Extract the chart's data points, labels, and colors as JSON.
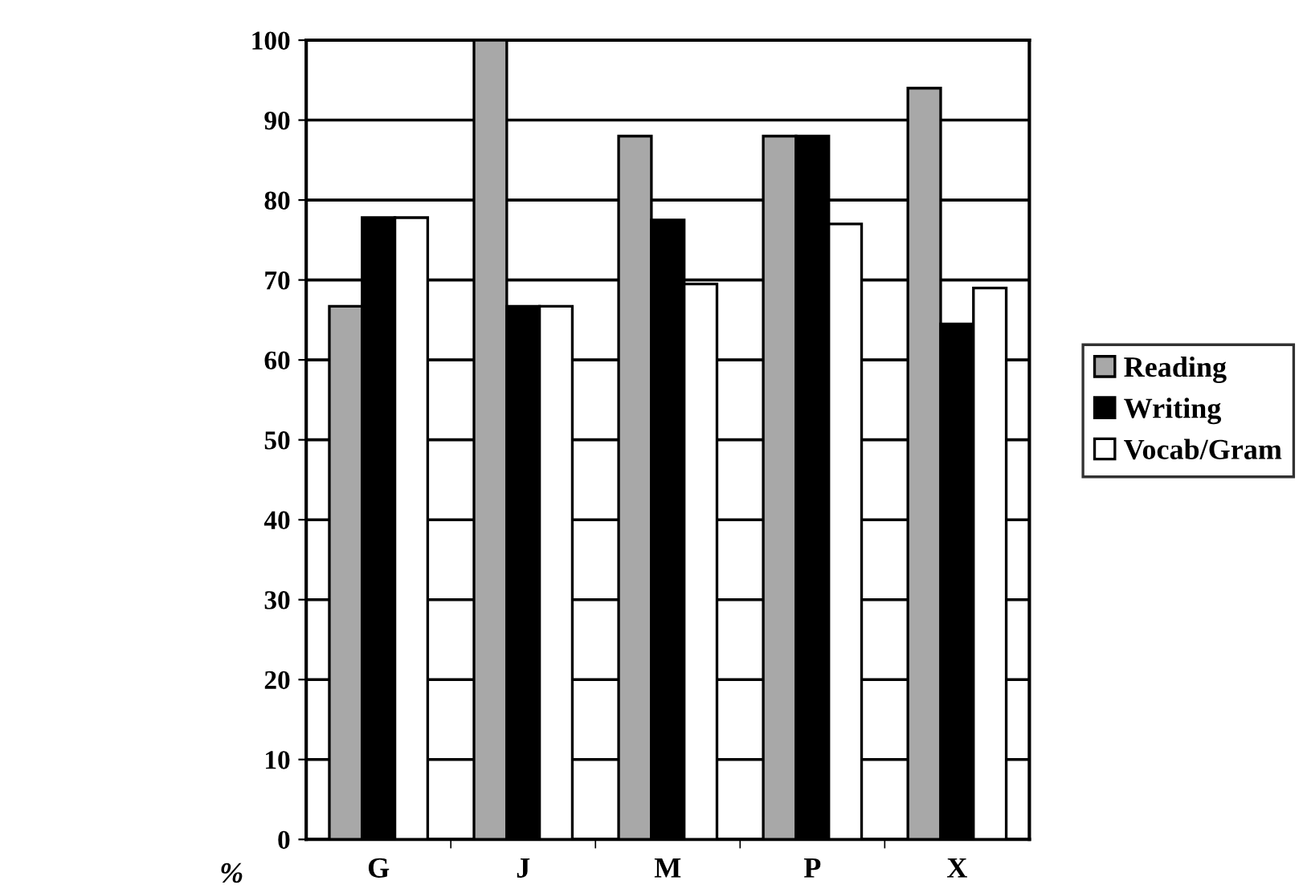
{
  "chart_data": {
    "type": "bar",
    "ylabel": "%",
    "categories": [
      "G",
      "J",
      "M",
      "P",
      "X"
    ],
    "series": [
      {
        "name": "Reading",
        "color": "#a8a8a8",
        "values": [
          66.7,
          100,
          88,
          88,
          94
        ]
      },
      {
        "name": "Writing",
        "color": "#000000",
        "values": [
          77.8,
          66.7,
          77.5,
          88,
          64.5
        ]
      },
      {
        "name": "Vocab/Gram",
        "color": "#ffffff",
        "values": [
          77.8,
          66.7,
          69.5,
          77,
          69
        ]
      }
    ],
    "ylim": [
      0,
      100
    ],
    "yticks": [
      0,
      10,
      20,
      30,
      40,
      50,
      60,
      70,
      80,
      90,
      100
    ],
    "grid": "y",
    "legend": "right"
  }
}
